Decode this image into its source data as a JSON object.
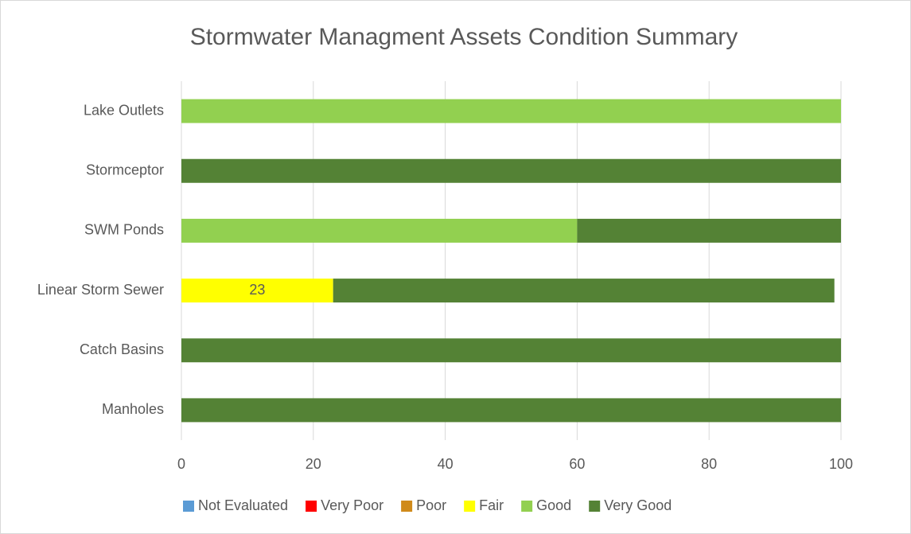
{
  "chart_data": {
    "type": "stacked_barh",
    "title": "Stormwater Managment Assets Condition Summary",
    "categories": [
      "Manholes",
      "Catch Basins",
      "Linear Storm Sewer",
      "SWM Ponds",
      "Stormceptor",
      "Lake Outlets"
    ],
    "series": [
      {
        "name": "Not Evaluated",
        "color": "#5b9bd5",
        "values": [
          0,
          0,
          0,
          0,
          0,
          0
        ]
      },
      {
        "name": "Very Poor",
        "color": "#ff0000",
        "values": [
          0,
          0,
          0,
          0,
          0,
          0
        ]
      },
      {
        "name": "Poor",
        "color": "#d08a1a",
        "values": [
          0,
          0,
          0,
          0,
          0,
          0
        ]
      },
      {
        "name": "Fair",
        "color": "#ffff00",
        "values": [
          0,
          0,
          23,
          0,
          0,
          0
        ],
        "value_labels": [
          null,
          null,
          "23",
          null,
          null,
          null
        ]
      },
      {
        "name": "Good",
        "color": "#92d050",
        "values": [
          0,
          0,
          0,
          60,
          0,
          100
        ]
      },
      {
        "name": "Very Good",
        "color": "#548235",
        "values": [
          100,
          100,
          76,
          40,
          100,
          0
        ]
      }
    ],
    "xlim": [
      0,
      100
    ],
    "xticks": [
      0,
      20,
      40,
      60,
      80,
      100
    ],
    "grid": true,
    "legend": "bottom"
  }
}
